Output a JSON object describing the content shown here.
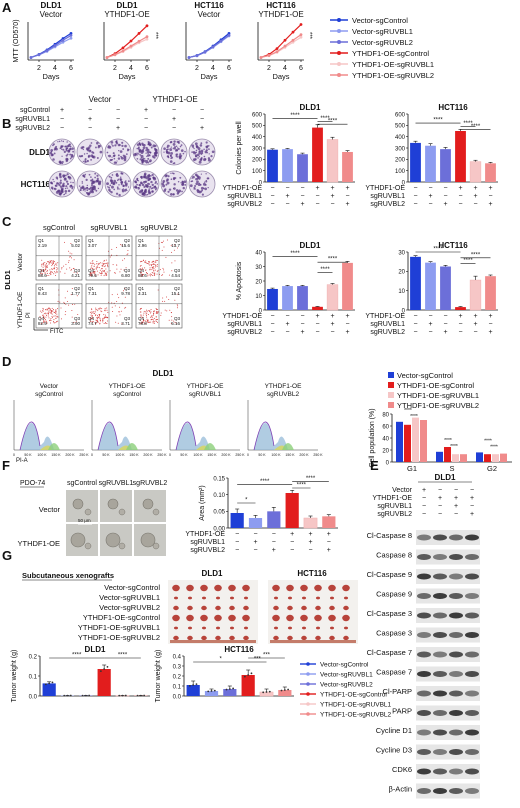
{
  "colors": {
    "vec_sgControl": "#1f3fd6",
    "vec_sgRUVBL1": "#8d9cf0",
    "vec_sgRUVBL2": "#6c6fd9",
    "oe_sgControl": "#e21d1d",
    "oe_sgRUVBL1": "#f6c6c6",
    "oe_sgRUVBL2": "#f08b8b"
  },
  "panels": {
    "A": "A",
    "B": "B",
    "C": "C",
    "D": "D",
    "E": "E",
    "F": "F",
    "G": "G"
  },
  "legend_groups": [
    "Vector-sgControl",
    "Vector-sgRUVBL1",
    "Vector-sgRUVBL2",
    "YTHDF1-OE-sgControl",
    "YTHDF1-OE-sgRUVBL1",
    "YTHDF1-OE-sgRUVBL2"
  ],
  "A": {
    "ylabel": "MTT (OD570)",
    "xlabel": "Days",
    "ticks": [
      "2",
      "4",
      "6"
    ],
    "panels": [
      {
        "title1": "DLD1",
        "title2": "Vector"
      },
      {
        "title1": "DLD1",
        "title2": "YTHDF1-OE",
        "sig": "***"
      },
      {
        "title1": "HCT116",
        "title2": "Vector"
      },
      {
        "title1": "HCT116",
        "title2": "YTHDF1-OE",
        "sig": "***"
      }
    ]
  },
  "B": {
    "rows": [
      "sgControl",
      "sgRUVBL1",
      "sgRUVBL2"
    ],
    "headers": [
      "Vector",
      "YTHDF1-OE"
    ],
    "plusminus": [
      [
        "+",
        "−",
        "−",
        "+",
        "−",
        "−"
      ],
      [
        "−",
        "+",
        "−",
        "−",
        "+",
        "−"
      ],
      [
        "−",
        "−",
        "+",
        "−",
        "−",
        "+"
      ]
    ],
    "lines": [
      "DLD1",
      "HCT116"
    ]
  },
  "treatment_rows": [
    "YTHDF1-OE",
    "sgRUVBL1",
    "sgRUVBL2"
  ],
  "treatment_signs": [
    [
      "−",
      "−",
      "−",
      "+",
      "+",
      "+"
    ],
    [
      "−",
      "+",
      "−",
      "−",
      "+",
      "−"
    ],
    [
      "−",
      "−",
      "+",
      "−",
      "−",
      "+"
    ]
  ],
  "sig4": "****",
  "sig1": "*",
  "sig3": "***",
  "C": {
    "cols": [
      "sgControl",
      "sgRUVBL1",
      "sgRUVBL2"
    ],
    "row_labels": [
      "Vector",
      "YTHDF1-OE"
    ],
    "cell_line": "DLD1",
    "x_axis": "FITC",
    "y_axis": "PI",
    "quadrants": [
      [
        [
          "Q1\n2.19",
          "Q2\n5.02",
          "Q4\n88.6",
          "Q3\n4.21"
        ],
        [
          "Q1\n3.07",
          "Q2\n15.6",
          "Q4\n79.6",
          "Q3\n6.80"
        ],
        [
          "Q1\n2.96",
          "Q2\n13.7",
          "Q4\n85.6",
          "Q3\n4.54"
        ]
      ],
      [
        [
          "Q1\n8.43",
          "Q2\n1.77",
          "Q4\n82.9",
          "Q3\n3.90"
        ],
        [
          "Q1\n7.31",
          "Q2\n9.78",
          "Q4\n74.7",
          "Q3\n3.71"
        ],
        [
          "Q1\n3.31",
          "Q2\n15.1",
          "Q4\n78.8",
          "Q3\n5.16"
        ]
      ]
    ]
  },
  "D": {
    "title": "DLD1",
    "panels": [
      {
        "l1": "Vector",
        "l2": "sgControl"
      },
      {
        "l1": "YTHDF1-OE",
        "l2": "sgControl"
      },
      {
        "l1": "YTHDF1-OE",
        "l2": "sgRUVBL1"
      },
      {
        "l1": "YTHDF1-OE",
        "l2": "sgRUVBL2"
      }
    ],
    "xlabel": "PI-A",
    "ticks": [
      "0",
      "50 K",
      "100 K",
      "150 K",
      "200 K",
      "250 K"
    ]
  },
  "F": {
    "sample": "PDO-74",
    "cols": [
      "sgControl",
      "sgRUVBL1",
      "sgRUVBL2"
    ],
    "rows": [
      "Vector",
      "YTHDF1-OE"
    ],
    "scale": "50 μm"
  },
  "E": {
    "title": "DLD1",
    "header_rows": [
      "Vector",
      "YTHDF1-OE",
      "sgRUVBL1",
      "sgRUVBL2"
    ],
    "header_signs": [
      [
        "+",
        "−",
        "−",
        "−"
      ],
      [
        "−",
        "+",
        "+",
        "+"
      ],
      [
        "−",
        "−",
        "+",
        "−"
      ],
      [
        "−",
        "−",
        "−",
        "+"
      ]
    ],
    "bands": [
      "Cl-Caspase 8",
      "Caspase 8",
      "Cl-Caspase 9",
      "Caspase 9",
      "Cl-Caspase 3",
      "Caspase 3",
      "Cl-Caspase 7",
      "Caspase 7",
      "Cl-PARP",
      "PARP",
      "Cycline D1",
      "Cycline D3",
      "CDK6",
      "β-Actin"
    ]
  },
  "G": {
    "title": "Subcutaneous xenografts",
    "groups": [
      "Vector-sgControl",
      "Vector-sgRUVBL1",
      "Vector-sgRUVBL2",
      "YTHDF1-OE-sgControl",
      "YTHDF1-OE-sgRUVBL1",
      "YTHDF1-OE-sgRUVBL2"
    ],
    "lines": [
      "DLD1",
      "HCT116"
    ]
  },
  "chart_data": [
    {
      "id": "A-DLD1-Vector",
      "type": "line",
      "title": "DLD1 Vector",
      "xlabel": "Days",
      "ylabel": "MTT (OD570)",
      "x": [
        1,
        2,
        3,
        4,
        5,
        6
      ],
      "series": [
        {
          "name": "Vector-sgControl",
          "values": [
            0.1,
            0.22,
            0.4,
            0.62,
            0.85,
            1.05
          ]
        },
        {
          "name": "Vector-sgRUVBL1",
          "values": [
            0.1,
            0.2,
            0.34,
            0.52,
            0.7,
            0.86
          ]
        },
        {
          "name": "Vector-sgRUVBL2",
          "values": [
            0.1,
            0.21,
            0.37,
            0.57,
            0.78,
            0.97
          ]
        }
      ]
    },
    {
      "id": "A-DLD1-OE",
      "type": "line",
      "title": "DLD1 YTHDF1-OE",
      "xlabel": "Days",
      "x": [
        1,
        2,
        3,
        4,
        5,
        6
      ],
      "series": [
        {
          "name": "YTHDF1-OE-sgControl",
          "values": [
            0.1,
            0.25,
            0.48,
            0.75,
            1.05,
            1.35
          ]
        },
        {
          "name": "YTHDF1-OE-sgRUVBL1",
          "values": [
            0.1,
            0.2,
            0.33,
            0.5,
            0.68,
            0.82
          ]
        },
        {
          "name": "YTHDF1-OE-sgRUVBL2",
          "values": [
            0.1,
            0.21,
            0.36,
            0.55,
            0.74,
            0.92
          ]
        }
      ]
    },
    {
      "id": "A-HCT116-Vector",
      "type": "line",
      "title": "HCT116 Vector",
      "xlabel": "Days",
      "x": [
        1,
        2,
        3,
        4,
        5,
        6
      ],
      "series": [
        {
          "name": "Vector-sgControl",
          "values": [
            0.1,
            0.18,
            0.33,
            0.55,
            0.8,
            1.05
          ]
        },
        {
          "name": "Vector-sgRUVBL1",
          "values": [
            0.1,
            0.17,
            0.3,
            0.5,
            0.72,
            0.95
          ]
        },
        {
          "name": "Vector-sgRUVBL2",
          "values": [
            0.1,
            0.17,
            0.31,
            0.52,
            0.75,
            0.98
          ]
        }
      ]
    },
    {
      "id": "A-HCT116-OE",
      "type": "line",
      "title": "HCT116 YTHDF1-OE",
      "xlabel": "Days",
      "x": [
        1,
        2,
        3,
        4,
        5,
        6
      ],
      "series": [
        {
          "name": "YTHDF1-OE-sgControl",
          "values": [
            0.1,
            0.22,
            0.45,
            0.78,
            1.1,
            1.4
          ]
        },
        {
          "name": "YTHDF1-OE-sgRUVBL1",
          "values": [
            0.1,
            0.17,
            0.3,
            0.5,
            0.7,
            0.9
          ]
        },
        {
          "name": "YTHDF1-OE-sgRUVBL2",
          "values": [
            0.1,
            0.18,
            0.33,
            0.55,
            0.78,
            1.0
          ]
        }
      ]
    },
    {
      "id": "B-DLD1",
      "type": "bar",
      "title": "DLD1",
      "ylabel": "Colonies per well",
      "ylim": [
        0,
        600
      ],
      "yticks": [
        "0",
        "100",
        "200",
        "300",
        "400",
        "500",
        "600"
      ],
      "values": [
        285,
        290,
        245,
        480,
        375,
        265
      ],
      "errors": [
        8,
        6,
        10,
        25,
        20,
        12
      ]
    },
    {
      "id": "B-HCT116",
      "type": "bar",
      "title": "HCT116",
      "ylim": [
        0,
        600
      ],
      "yticks": [
        "0",
        "100",
        "200",
        "300",
        "400",
        "500",
        "600"
      ],
      "values": [
        345,
        320,
        290,
        450,
        180,
        165
      ],
      "errors": [
        15,
        18,
        15,
        15,
        12,
        8
      ]
    },
    {
      "id": "C-DLD1",
      "type": "bar",
      "title": "DLD1",
      "ylabel": "% Apoptosis",
      "ylim": [
        0,
        40
      ],
      "yticks": [
        "0",
        "10",
        "20",
        "30",
        "40"
      ],
      "values": [
        14.5,
        16.5,
        16.5,
        2.2,
        17.5,
        32.5
      ],
      "errors": [
        0.6,
        0.5,
        0.5,
        0.3,
        0.8,
        1.0
      ]
    },
    {
      "id": "C-HCT116",
      "type": "bar",
      "title": "HCT116",
      "ylim": [
        0,
        30
      ],
      "yticks": [
        "0",
        "10",
        "20",
        "30"
      ],
      "values": [
        27.5,
        24.5,
        22.5,
        1.5,
        15.5,
        17.5
      ],
      "errors": [
        0.6,
        0.5,
        0.6,
        0.3,
        2.0,
        0.6
      ]
    },
    {
      "id": "D-cellcycle",
      "type": "bar",
      "ylabel": "Cell population (%)",
      "ylim": [
        0,
        80
      ],
      "yticks": [
        "0",
        "20",
        "40",
        "60",
        "80"
      ],
      "categories": [
        "G1",
        "S",
        "G2"
      ],
      "series": [
        {
          "name": "Vector-sgControl",
          "values": [
            67,
            17,
            16
          ]
        },
        {
          "name": "YTHDF1-OE-sgControl",
          "values": [
            62,
            25,
            13
          ]
        },
        {
          "name": "YTHDF1-OE-sgRUVBL1",
          "values": [
            74,
            13,
            13
          ]
        },
        {
          "name": "YTHDF1-OE-sgRUVBL2",
          "values": [
            70,
            13,
            14
          ]
        }
      ]
    },
    {
      "id": "F-area",
      "type": "bar",
      "ylabel": "Area (mm²)",
      "ylim": [
        0,
        0.15
      ],
      "yticks": [
        "0.00",
        "0.05",
        "0.10",
        "0.15"
      ],
      "values": [
        0.045,
        0.03,
        0.05,
        0.105,
        0.03,
        0.035
      ],
      "errors": [
        0.012,
        0.008,
        0.012,
        0.008,
        0.006,
        0.005
      ]
    },
    {
      "id": "G-DLD1",
      "type": "bar",
      "title": "DLD1",
      "ylabel": "Tumor weight (g)",
      "ylim": [
        0,
        0.2
      ],
      "yticks": [
        "0.0",
        "0.1",
        "0.2"
      ],
      "values": [
        0.063,
        0.002,
        0.002,
        0.135,
        0.002,
        0.002
      ],
      "errors": [
        0.008,
        0.001,
        0.001,
        0.02,
        0.001,
        0.001
      ]
    },
    {
      "id": "G-HCT116",
      "type": "bar",
      "title": "HCT116",
      "ylabel": "Tumor weight (g)",
      "ylim": [
        0,
        0.4
      ],
      "yticks": [
        "0.0",
        "0.1",
        "0.2",
        "0.3",
        "0.4"
      ],
      "values": [
        0.11,
        0.05,
        0.07,
        0.21,
        0.04,
        0.06
      ],
      "errors": [
        0.04,
        0.02,
        0.03,
        0.05,
        0.03,
        0.03
      ]
    }
  ]
}
